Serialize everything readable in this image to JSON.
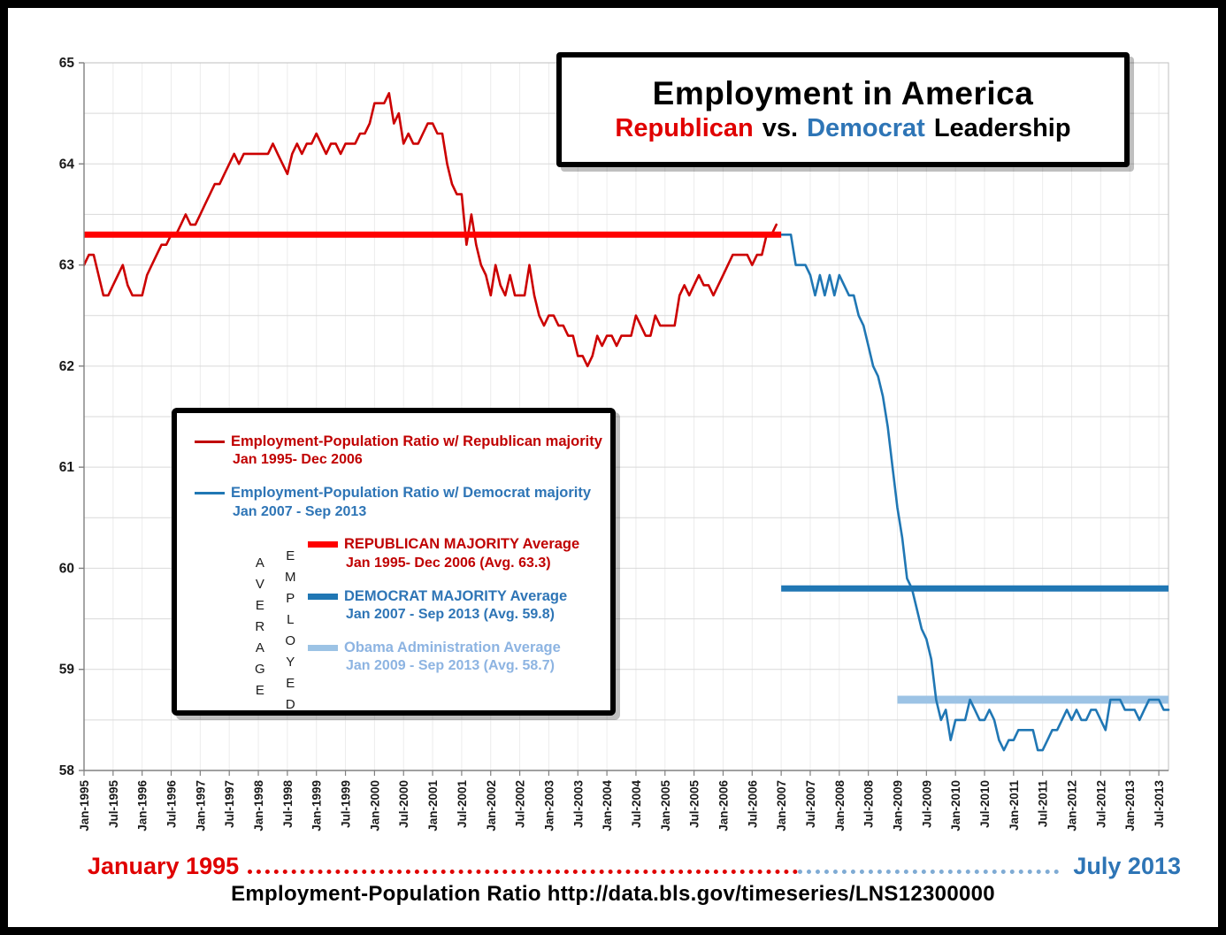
{
  "title": {
    "main": "Employment in America",
    "sub_republican": "Republican",
    "sub_vs": "vs.",
    "sub_democrat": "Democrat",
    "sub_leadership": "Leadership"
  },
  "legend": {
    "entries": [
      {
        "label": "Employment-Population Ratio w/ Republican majority",
        "dates": "Jan 1995- Dec 2006",
        "color": "#c00000",
        "swatch": "#c00000",
        "thick": false
      },
      {
        "label": "Employment-Population Ratio w/ Democrat majority",
        "dates": "Jan 2007 - Sep 2013",
        "color": "#2e75b6",
        "swatch": "#2077b4",
        "thick": false
      },
      {
        "label": "REPUBLICAN MAJORITY Average",
        "dates": "Jan 1995- Dec 2006 (Avg. 63.3)",
        "color": "#c00000",
        "swatch": "#ff0000",
        "thick": true
      },
      {
        "label": "DEMOCRAT MAJORITY Average",
        "dates": "Jan 2007 - Sep 2013 (Avg. 59.8)",
        "color": "#2e75b6",
        "swatch": "#2077b4",
        "thick": true
      },
      {
        "label": "Obama Administration Average",
        "dates": "Jan 2009 - Sep 2013 (Avg. 58.7)",
        "color": "#8db4e2",
        "swatch": "#9cc3e5",
        "thick": true
      }
    ],
    "vertical_words": [
      "AVERAGE",
      "EMPLOYED"
    ]
  },
  "footer": {
    "start_label": "January 1995",
    "end_label": "July 2013",
    "source": "Employment-Population Ratio http://data.bls.gov/timeseries/LNS12300000"
  },
  "colors": {
    "republican_line": "#cc0000",
    "republican_average": "#ff0000",
    "democrat_line": "#2077b4",
    "democrat_average": "#2077b4",
    "obama_average": "#9cc3e5",
    "gridline": "#d9d9d9"
  },
  "chart_data": {
    "type": "line",
    "title": "Employment in America - Republican vs. Democrat Leadership",
    "ylabel": "Employment-Population Ratio (Average Employed)",
    "xlabel": "",
    "ylim": [
      58,
      65
    ],
    "y_ticks": [
      "65",
      "64",
      "63",
      "62",
      "61",
      "60",
      "59",
      "58"
    ],
    "y_tick_values": [
      65,
      64,
      63,
      62,
      61,
      60,
      59,
      58
    ],
    "x_count": 225,
    "x_tick_step": 6,
    "x_tick_labels": [
      "Jan-1995",
      "Jul-1995",
      "Jan-1996",
      "Jul-1996",
      "Jan-1997",
      "Jul-1997",
      "Jan-1998",
      "Jul-1998",
      "Jan-1999",
      "Jul-1999",
      "Jan-2000",
      "Jul-2000",
      "Jan-2001",
      "Jul-2001",
      "Jan-2002",
      "Jul-2002",
      "Jan-2003",
      "Jul-2003",
      "Jan-2004",
      "Jul-2004",
      "Jan-2005",
      "Jul-2005",
      "Jan-2006",
      "Jul-2006",
      "Jan-2007",
      "Jul-2007",
      "Jan-2008",
      "Jul-2008",
      "Jan-2009",
      "Jul-2009",
      "Jan-2010",
      "Jul-2010",
      "Jan-2011",
      "Jul-2011",
      "Jan-2012",
      "Jul-2012",
      "Jan-2013",
      "Jul-2013"
    ],
    "grid": {
      "h_step": 0.5,
      "color": "#d9d9d9",
      "v_color": "#ececec"
    },
    "series": [
      {
        "name": "Employment-Population Ratio w/ Republican majority (Jan 1995 - Dec 2006)",
        "color": "#cc0000",
        "start_index": 0,
        "values": [
          63.0,
          63.1,
          63.1,
          62.9,
          62.7,
          62.7,
          62.8,
          62.9,
          63.0,
          62.8,
          62.7,
          62.7,
          62.7,
          62.9,
          63.0,
          63.1,
          63.2,
          63.2,
          63.3,
          63.3,
          63.4,
          63.5,
          63.4,
          63.4,
          63.5,
          63.6,
          63.7,
          63.8,
          63.8,
          63.9,
          64.0,
          64.1,
          64.0,
          64.1,
          64.1,
          64.1,
          64.1,
          64.1,
          64.1,
          64.2,
          64.1,
          64.0,
          63.9,
          64.1,
          64.2,
          64.1,
          64.2,
          64.2,
          64.3,
          64.2,
          64.1,
          64.2,
          64.2,
          64.1,
          64.2,
          64.2,
          64.2,
          64.3,
          64.3,
          64.4,
          64.6,
          64.6,
          64.6,
          64.7,
          64.4,
          64.5,
          64.2,
          64.3,
          64.2,
          64.2,
          64.3,
          64.4,
          64.4,
          64.3,
          64.3,
          64.0,
          63.8,
          63.7,
          63.7,
          63.2,
          63.5,
          63.2,
          63.0,
          62.9,
          62.7,
          63.0,
          62.8,
          62.7,
          62.9,
          62.7,
          62.7,
          62.7,
          63.0,
          62.7,
          62.5,
          62.4,
          62.5,
          62.5,
          62.4,
          62.4,
          62.3,
          62.3,
          62.1,
          62.1,
          62.0,
          62.1,
          62.3,
          62.2,
          62.3,
          62.3,
          62.2,
          62.3,
          62.3,
          62.3,
          62.5,
          62.4,
          62.3,
          62.3,
          62.5,
          62.4,
          62.4,
          62.4,
          62.4,
          62.7,
          62.8,
          62.7,
          62.8,
          62.9,
          62.8,
          62.8,
          62.7,
          62.8,
          62.9,
          63.0,
          63.1,
          63.1,
          63.1,
          63.1,
          63.0,
          63.1,
          63.1,
          63.3,
          63.3,
          63.4
        ]
      },
      {
        "name": "Employment-Population Ratio w/ Democrat majority (Jan 2007 - Sep 2013)",
        "color": "#2077b4",
        "start_index": 144,
        "values": [
          63.3,
          63.3,
          63.3,
          63.0,
          63.0,
          63.0,
          62.9,
          62.7,
          62.9,
          62.7,
          62.9,
          62.7,
          62.9,
          62.8,
          62.7,
          62.7,
          62.5,
          62.4,
          62.2,
          62.0,
          61.9,
          61.7,
          61.4,
          61.0,
          60.6,
          60.3,
          59.9,
          59.8,
          59.6,
          59.4,
          59.3,
          59.1,
          58.7,
          58.5,
          58.6,
          58.3,
          58.5,
          58.5,
          58.5,
          58.7,
          58.6,
          58.5,
          58.5,
          58.6,
          58.5,
          58.3,
          58.2,
          58.3,
          58.3,
          58.4,
          58.4,
          58.4,
          58.4,
          58.2,
          58.2,
          58.3,
          58.4,
          58.4,
          58.5,
          58.6,
          58.5,
          58.6,
          58.5,
          58.5,
          58.6,
          58.6,
          58.5,
          58.4,
          58.7,
          58.7,
          58.7,
          58.6,
          58.6,
          58.6,
          58.5,
          58.6,
          58.7,
          58.7,
          58.7,
          58.6,
          58.6
        ]
      }
    ],
    "average_lines": [
      {
        "name": "REPUBLICAN MAJORITY Average (Jan 1995 - Dec 2006)",
        "value": 63.3,
        "start_index": 0,
        "end_index": 144,
        "color": "#ff0000",
        "width": 7
      },
      {
        "name": "DEMOCRAT MAJORITY Average (Jan 2007 - Sep 2013)",
        "value": 59.8,
        "start_index": 144,
        "end_index": 224,
        "color": "#2077b4",
        "width": 7
      },
      {
        "name": "Obama Administration Average (Jan 2009 - Sep 2013)",
        "value": 58.7,
        "start_index": 168,
        "end_index": 224,
        "color": "#9cc3e5",
        "width": 9,
        "under_series": true
      }
    ],
    "legend_position": "inside-left"
  }
}
